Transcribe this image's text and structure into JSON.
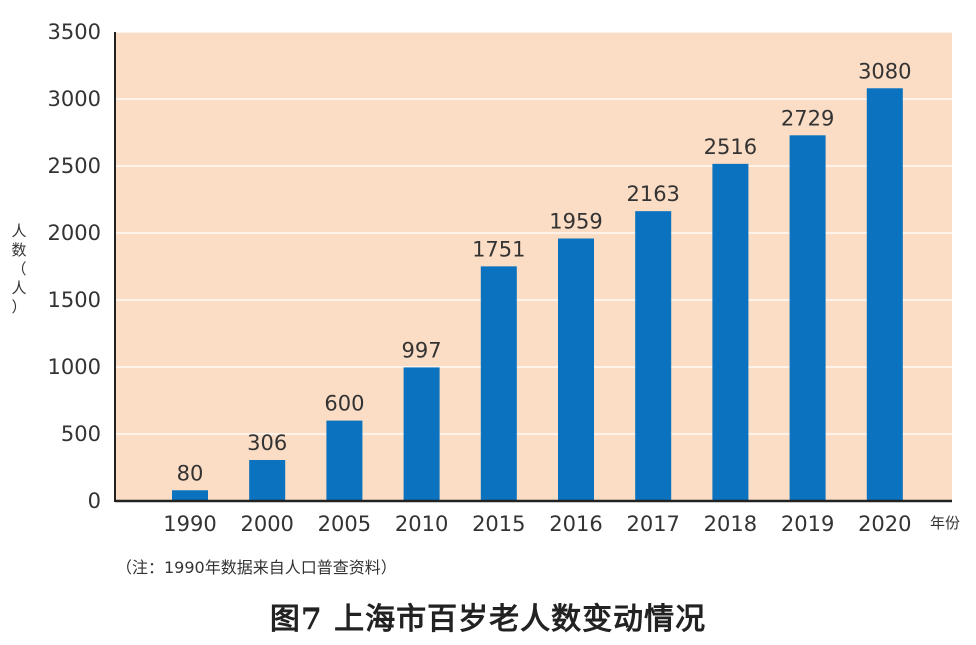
{
  "chart_data": {
    "type": "bar",
    "title": "图7  上海市百岁老人数变动情况",
    "note": "（注：1990年数据来自人口普查资料）",
    "ylabel_chars": [
      "人",
      "数",
      "（",
      "人",
      "）"
    ],
    "xlabel_unit": "年份",
    "categories": [
      "1990",
      "2000",
      "2005",
      "2010",
      "2015",
      "2016",
      "2017",
      "2018",
      "2019",
      "2020"
    ],
    "values": [
      80,
      306,
      600,
      997,
      1751,
      1959,
      2163,
      2516,
      2729,
      3080
    ],
    "data_labels": [
      "80",
      "306",
      "600",
      "997",
      "1751",
      "1959",
      "2163",
      "2516",
      "2729",
      "3080"
    ],
    "ylim": [
      0,
      3500
    ],
    "yticks": [
      0,
      500,
      1000,
      1500,
      2000,
      2500,
      3000,
      3500
    ],
    "colors": {
      "bar": "#0a72bf",
      "plot_bg": "#fbdcc4",
      "grid": "#ffffff",
      "axis": "#222222"
    }
  }
}
